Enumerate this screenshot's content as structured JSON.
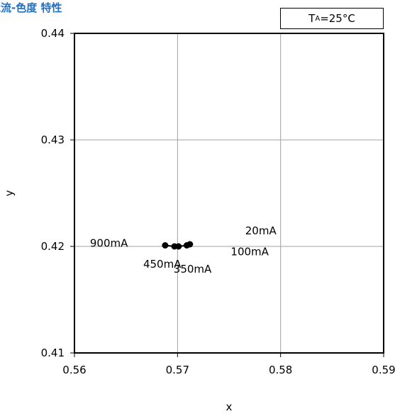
{
  "chart_data": {
    "type": "line",
    "title": "電流-色度 特性",
    "condition": {
      "main": "T",
      "sub": "A",
      "rest": "=25°C"
    },
    "xlabel": "x",
    "ylabel": "y",
    "xlim": [
      0.56,
      0.59
    ],
    "ylim": [
      0.41,
      0.44
    ],
    "x_ticks": [
      "0.56",
      "0.57",
      "0.58",
      "0.59"
    ],
    "y_ticks": [
      "0.41",
      "0.42",
      "0.43",
      "0.44"
    ],
    "grid": true,
    "series": [
      {
        "color": "#000000",
        "points": [
          {
            "current": "20mA",
            "x": 0.5712,
            "y": 0.4202
          },
          {
            "current": "100mA",
            "x": 0.5709,
            "y": 0.4201
          },
          {
            "current": "350mA",
            "x": 0.5701,
            "y": 0.42
          },
          {
            "current": "450mA",
            "x": 0.5697,
            "y": 0.42
          },
          {
            "current": "900mA",
            "x": 0.5688,
            "y": 0.4201
          }
        ]
      }
    ]
  }
}
